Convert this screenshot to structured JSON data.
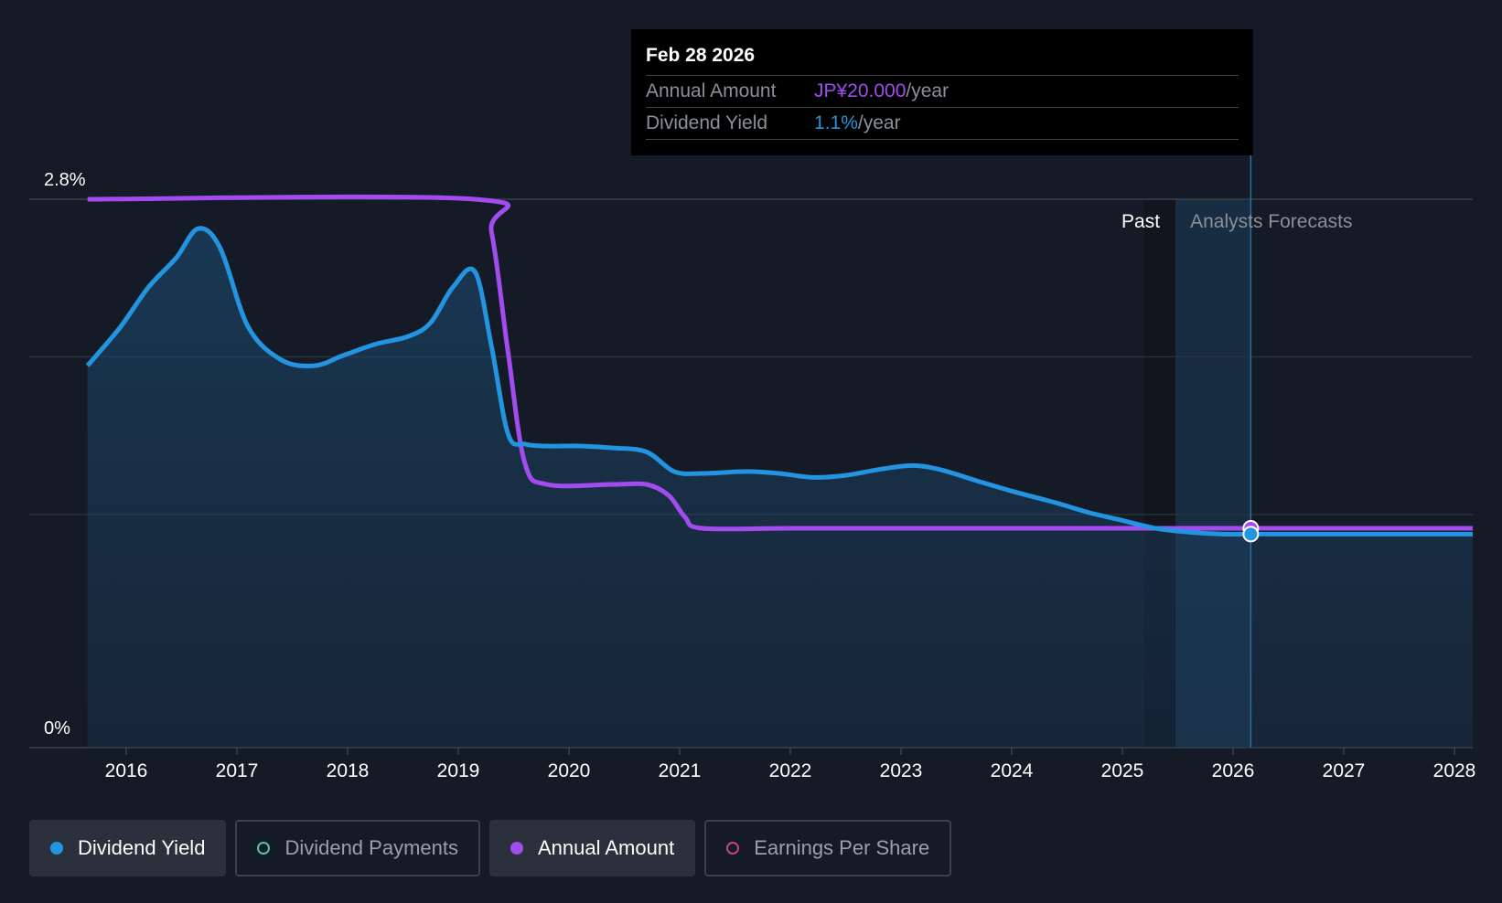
{
  "tooltip": {
    "date": "Feb 28 2026",
    "annual_amount_label": "Annual Amount",
    "annual_amount_value": "JP¥20.000",
    "annual_amount_unit": "/year",
    "dividend_yield_label": "Dividend Yield",
    "dividend_yield_value": "1.1%",
    "dividend_yield_unit": "/year"
  },
  "regions": {
    "past_label": "Past",
    "forecast_label": "Analysts Forecasts"
  },
  "colors": {
    "dividend_yield": "#2394df",
    "annual_amount": "#a24cf0",
    "dividend_payments": "#4fc4b5",
    "earnings_per_share": "#c2467c",
    "background": "#151b26"
  },
  "legend": [
    {
      "label": "Dividend Yield",
      "active": true,
      "color": "#2394df"
    },
    {
      "label": "Dividend Payments",
      "active": false,
      "color": "#4fc4b5"
    },
    {
      "label": "Annual Amount",
      "active": true,
      "color": "#a24cf0"
    },
    {
      "label": "Earnings Per Share",
      "active": false,
      "color": "#c2467c"
    }
  ],
  "chart_data": {
    "type": "line",
    "title": "",
    "xlabel": "",
    "ylabel": "",
    "x_ticks": [
      "2016",
      "2017",
      "2018",
      "2019",
      "2020",
      "2021",
      "2022",
      "2023",
      "2024",
      "2025",
      "2026",
      "2027",
      "2028"
    ],
    "y_ticks": [
      "0%",
      "2.8%"
    ],
    "xlim": [
      2015.5,
      2028.2
    ],
    "ylim": [
      0,
      2.8
    ],
    "past_end": 2025.48,
    "forecast_end": 2026.16,
    "highlight_date": 2026.16,
    "series": [
      {
        "name": "Dividend Yield",
        "unit": "%",
        "x": [
          2015.65,
          2015.95,
          2016.2,
          2016.45,
          2016.65,
          2016.85,
          2017.1,
          2017.4,
          2017.7,
          2017.95,
          2018.25,
          2018.55,
          2018.75,
          2018.95,
          2019.15,
          2019.3,
          2019.45,
          2019.6,
          2019.8,
          2020.1,
          2020.4,
          2020.7,
          2020.95,
          2021.2,
          2021.6,
          2021.9,
          2022.2,
          2022.5,
          2022.8,
          2023.1,
          2023.35,
          2023.7,
          2024.0,
          2024.4,
          2024.7,
          2025.0,
          2025.3,
          2025.6,
          2025.9,
          2026.16,
          2027.0,
          2028.2
        ],
        "values": [
          1.95,
          2.15,
          2.35,
          2.5,
          2.65,
          2.55,
          2.15,
          1.98,
          1.95,
          2.0,
          2.06,
          2.1,
          2.17,
          2.35,
          2.43,
          2.05,
          1.6,
          1.55,
          1.54,
          1.54,
          1.53,
          1.51,
          1.41,
          1.4,
          1.41,
          1.4,
          1.38,
          1.39,
          1.42,
          1.44,
          1.42,
          1.36,
          1.31,
          1.25,
          1.2,
          1.16,
          1.12,
          1.1,
          1.09,
          1.09,
          1.09,
          1.09
        ]
      },
      {
        "name": "Annual Amount",
        "unit": "JP¥",
        "x": [
          2015.65,
          2019.15,
          2019.3,
          2019.45,
          2019.6,
          2019.8,
          2020.4,
          2020.7,
          2020.9,
          2021.05,
          2021.2,
          2022.0,
          2023.0,
          2024.0,
          2025.0,
          2026.16,
          2028.2
        ],
        "values": [
          50,
          50,
          47,
          36,
          26,
          24,
          24,
          24,
          23,
          21,
          20,
          20,
          20,
          20,
          20,
          20,
          20
        ]
      }
    ]
  }
}
